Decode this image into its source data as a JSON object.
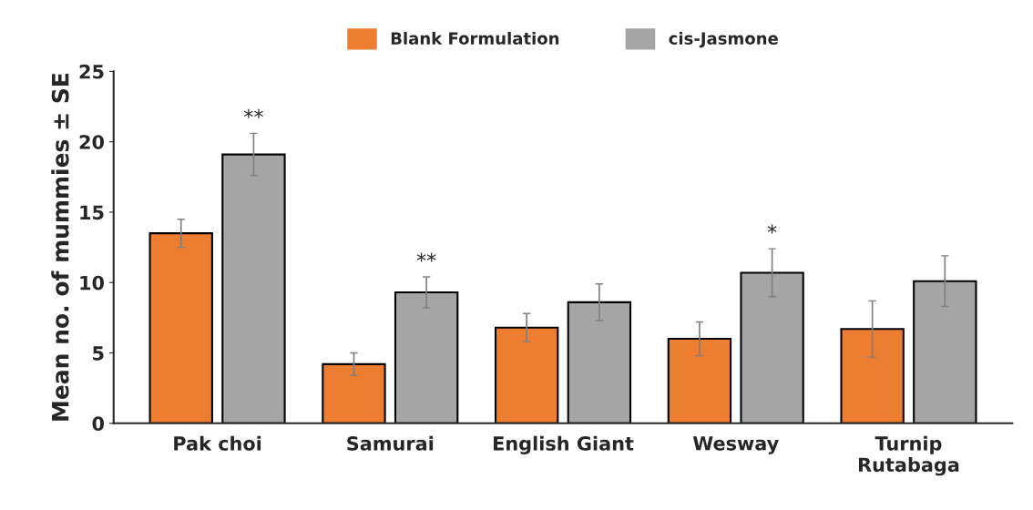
{
  "chart_data": {
    "type": "bar",
    "ylabel": "Mean no. of mummies ± SE",
    "categories": [
      "Pak choi",
      "Samurai",
      "English Giant",
      "Wesway",
      "Turnip\nRutabaga"
    ],
    "series": [
      {
        "name": "Blank Formulation",
        "color": "#ed7d31",
        "values": [
          13.5,
          4.2,
          6.8,
          6.0,
          6.7
        ],
        "errors": [
          1.0,
          0.8,
          1.0,
          1.2,
          2.0
        ]
      },
      {
        "name": "cis-Jasmone",
        "color": "#a5a5a5",
        "values": [
          19.1,
          9.3,
          8.6,
          10.7,
          10.1
        ],
        "errors": [
          1.5,
          1.1,
          1.3,
          1.7,
          1.8
        ],
        "value_labels": [
          "**",
          "**",
          null,
          "*",
          null
        ]
      }
    ],
    "ylim": [
      0,
      25
    ],
    "yticks": [
      0,
      5,
      10,
      15,
      20,
      25
    ],
    "legend": "top",
    "grid": false
  }
}
